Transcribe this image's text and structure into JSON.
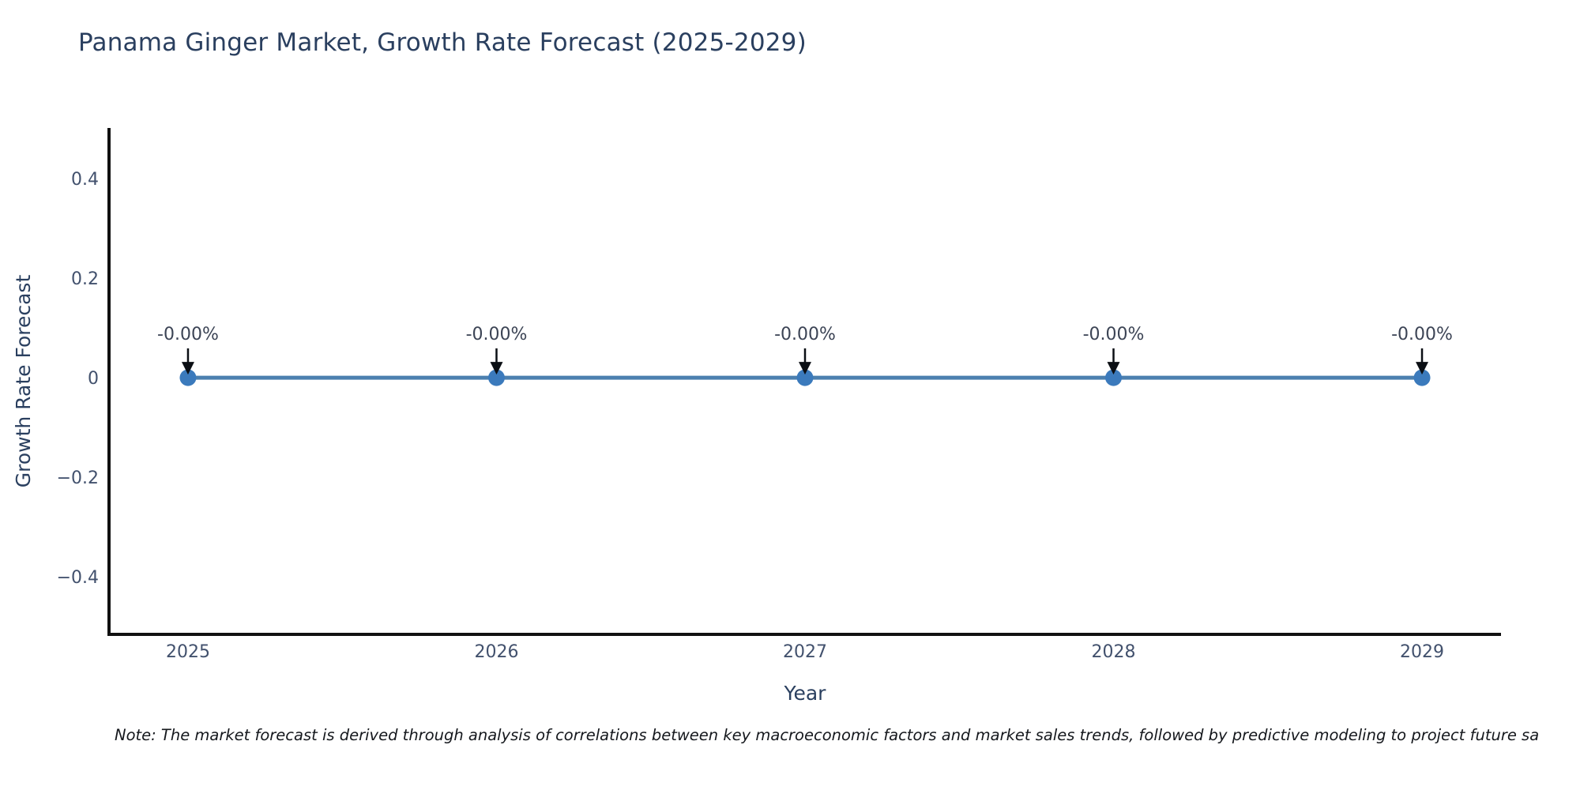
{
  "figure": {
    "note": "Note: The market forecast is derived through analysis of correlations between key macroeconomic factors and market sales trends, followed by predictive modeling to project future sa"
  },
  "chart_data": {
    "type": "line",
    "title": "Panama Ginger Market, Growth Rate Forecast (2025-2029)",
    "xlabel": "Year",
    "ylabel": "Growth Rate Forecast",
    "x": [
      2025,
      2026,
      2027,
      2028,
      2029
    ],
    "series": [
      {
        "name": "Growth Rate Forecast",
        "values": [
          0,
          0,
          0,
          0,
          0
        ]
      }
    ],
    "point_labels": [
      "-0.00%",
      "-0.00%",
      "-0.00%",
      "-0.00%",
      "-0.00%"
    ],
    "xtick_labels": [
      "2025",
      "2026",
      "2027",
      "2028",
      "2029"
    ],
    "yticks": [
      -0.4,
      -0.2,
      0,
      0.2,
      0.4
    ],
    "ytick_labels": [
      "−0.4",
      "−0.2",
      "0",
      "0.2",
      "0.4"
    ],
    "xlim": [
      2024.744,
      2029.256
    ],
    "ylim": [
      -0.516,
      0.502
    ],
    "grid": false,
    "legend": "none",
    "annotation_style": "down-arrow-to-point",
    "colors": {
      "background": "#ffffff",
      "figure_title": "#2a3f5f",
      "axis_title": "#2a3f5f",
      "tick_label": "#42516d",
      "annotation_text": "#3c4455",
      "arrow": "#0b0f14",
      "axis": "#111111",
      "line": "#4c80af",
      "marker": "#3b7abc",
      "note_text": "#15181d"
    }
  }
}
